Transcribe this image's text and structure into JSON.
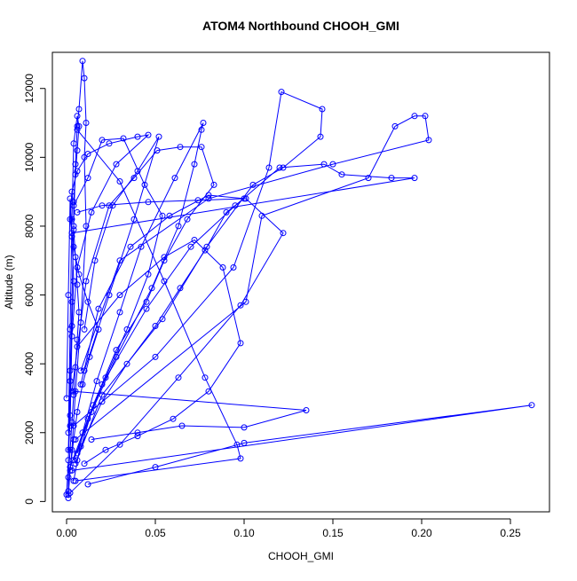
{
  "chart_data": {
    "type": "line",
    "title": "ATOM4 Northbound CHOOH_GMI",
    "xlabel": "CHOOH_GMI",
    "ylabel": "Altitude (m)",
    "xlim": [
      -0.008,
      0.272
    ],
    "ylim": [
      -300,
      13050
    ],
    "x_ticks": [
      0.0,
      0.05,
      0.1,
      0.15,
      0.2,
      0.25
    ],
    "x_tick_labels": [
      "0.00",
      "0.05",
      "0.10",
      "0.15",
      "0.20",
      "0.25"
    ],
    "y_ticks": [
      0,
      2000,
      4000,
      6000,
      8000,
      10000,
      12000
    ],
    "y_tick_labels": [
      "0",
      "2000",
      "4000",
      "6000",
      "8000",
      "10000",
      "12000"
    ],
    "grid": false,
    "legend": "none",
    "series_color": "#0000ff",
    "marker": "open-circle",
    "series": [
      {
        "x": [
          0.001,
          0.002,
          0.004,
          0.006,
          0.009,
          0.013,
          0.018,
          0.012,
          0.007,
          0.004,
          0.002,
          0.003,
          0.006,
          0.012,
          0.024,
          0.04,
          0.046,
          0.028,
          0.014,
          0.006,
          0.003,
          0.002
        ],
        "y": [
          200,
          900,
          1800,
          2600,
          3400,
          4200,
          5000,
          5800,
          6600,
          7400,
          8200,
          9000,
          9600,
          10100,
          10400,
          10600,
          10650,
          9800,
          8400,
          6800,
          4800,
          2200
        ]
      },
      {
        "x": [
          0.001,
          0.003,
          0.005,
          0.008,
          0.011,
          0.01,
          0.011,
          0.01,
          0.009,
          0.007,
          0.006,
          0.005,
          0.004,
          0.003,
          0.002,
          0.001
        ],
        "y": [
          300,
          1500,
          3200,
          5200,
          8000,
          10000,
          11000,
          12300,
          12800,
          11400,
          10900,
          9800,
          8000,
          5800,
          3500,
          1500
        ]
      },
      {
        "x": [
          0.006,
          0.014,
          0.028,
          0.048,
          0.063,
          0.072,
          0.076,
          0.077,
          0.061,
          0.042,
          0.03,
          0.017,
          0.009,
          0.004
        ],
        "y": [
          1200,
          2600,
          4200,
          6200,
          8000,
          9800,
          10800,
          11000,
          9400,
          7400,
          5500,
          3500,
          2000,
          600
        ]
      },
      {
        "x": [
          0.002,
          0.03,
          0.063,
          0.098,
          0.122,
          0.101,
          0.074,
          0.046,
          0.02,
          0.006
        ],
        "y": [
          250,
          1650,
          3600,
          5700,
          7800,
          8800,
          8750,
          8700,
          8600,
          8400
        ]
      },
      {
        "x": [
          0.004,
          0.05,
          0.094,
          0.114,
          0.121,
          0.144,
          0.143,
          0.122,
          0.105,
          0.079,
          0.054,
          0.02,
          0.005
        ],
        "y": [
          2200,
          4200,
          6800,
          9700,
          11900,
          11400,
          10600,
          9700,
          9200,
          7400,
          5300,
          3100,
          1100
        ]
      },
      {
        "x": [
          0.005,
          0.101,
          0.11,
          0.17,
          0.185,
          0.196,
          0.202,
          0.204,
          0.15,
          0.08,
          0.03,
          0.008
        ],
        "y": [
          1800,
          5800,
          8300,
          9400,
          10900,
          11200,
          11200,
          10500,
          9800,
          8800,
          7000,
          3800
        ]
      },
      {
        "x": [
          0.003,
          0.262,
          0.1,
          0.05,
          0.012
        ],
        "y": [
          900,
          2800,
          1700,
          1000,
          500
        ]
      },
      {
        "x": [
          0.004,
          0.135,
          0.1,
          0.065,
          0.04,
          0.014
        ],
        "y": [
          3200,
          2650,
          2150,
          2200,
          2000,
          1800
        ]
      },
      {
        "x": [
          0.005,
          0.098,
          0.096,
          0.078,
          0.055,
          0.03,
          0.006
        ],
        "y": [
          600,
          1250,
          1650,
          3600,
          6400,
          9300,
          10800
        ]
      },
      {
        "x": [
          0.003,
          0.196,
          0.183,
          0.155,
          0.145,
          0.12,
          0.095,
          0.07,
          0.045,
          0.02,
          0.004
        ],
        "y": [
          7800,
          9400,
          9400,
          9500,
          9800,
          9700,
          8600,
          7400,
          5600,
          3400,
          1200
        ]
      },
      {
        "x": [
          0.006,
          0.03,
          0.055,
          0.072,
          0.088,
          0.098,
          0.08,
          0.06,
          0.04,
          0.022,
          0.01
        ],
        "y": [
          4500,
          6000,
          7100,
          7600,
          6800,
          4600,
          3200,
          2400,
          1900,
          1500,
          1100
        ]
      },
      {
        "x": [
          0.002,
          0.015,
          0.028,
          0.045,
          0.055,
          0.068,
          0.083,
          0.076,
          0.064,
          0.051,
          0.038,
          0.024,
          0.011,
          0.003
        ],
        "y": [
          1000,
          2800,
          4400,
          5800,
          7000,
          8200,
          9200,
          10300,
          10300,
          10200,
          9400,
          8600,
          6400,
          3200
        ]
      },
      {
        "x": [
          0.001,
          0.001,
          0.002,
          0.003,
          0.004,
          0.005,
          0.006,
          0.007,
          0.006,
          0.005,
          0.004,
          0.004,
          0.005,
          0.006,
          0.007,
          0.006,
          0.004,
          0.003,
          0.002,
          0.001
        ],
        "y": [
          100,
          700,
          1500,
          2300,
          3100,
          3900,
          4700,
          5500,
          6300,
          7100,
          7900,
          8700,
          9500,
          10200,
          10900,
          11200,
          10400,
          8200,
          5000,
          2000
        ]
      },
      {
        "x": [
          0.0,
          0.001,
          0.002,
          0.002,
          0.003,
          0.004,
          0.003,
          0.002,
          0.001,
          0.0
        ],
        "y": [
          200,
          1200,
          2500,
          3800,
          5100,
          6400,
          7700,
          8800,
          6000,
          3000
        ]
      },
      {
        "x": [
          0.008,
          0.02,
          0.034,
          0.05,
          0.064,
          0.078,
          0.09,
          0.1,
          0.08,
          0.058,
          0.036,
          0.018,
          0.008
        ],
        "y": [
          1600,
          2900,
          4000,
          5100,
          6200,
          7300,
          8400,
          8800,
          8900,
          8300,
          7400,
          5600,
          3400
        ]
      },
      {
        "x": [
          0.01,
          0.024,
          0.038,
          0.052,
          0.04,
          0.026,
          0.016,
          0.01
        ],
        "y": [
          3800,
          6000,
          8200,
          10600,
          9600,
          8600,
          7000,
          5000
        ]
      },
      {
        "x": [
          0.004,
          0.012,
          0.02,
          0.032,
          0.044,
          0.054,
          0.046,
          0.034,
          0.022,
          0.012,
          0.006
        ],
        "y": [
          8600,
          9400,
          10500,
          10550,
          9200,
          8300,
          6600,
          5000,
          3600,
          2400,
          1400
        ]
      }
    ]
  }
}
